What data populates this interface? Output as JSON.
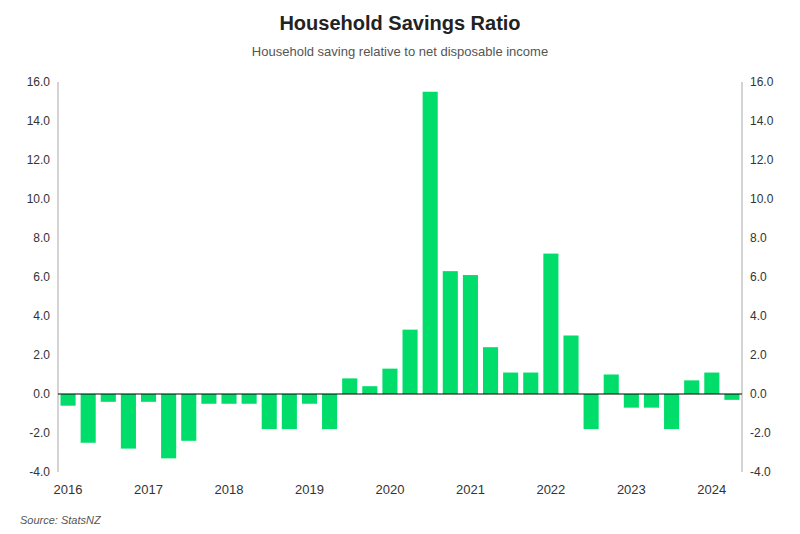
{
  "chart_data": {
    "type": "bar",
    "title": "Household Savings Ratio",
    "subtitle": "Household saving relative to net disposable income",
    "source": "Source: StatsNZ",
    "categories": [
      "2016",
      null,
      null,
      null,
      "2017",
      null,
      null,
      null,
      "2018",
      null,
      null,
      null,
      "2019",
      null,
      null,
      null,
      "2020",
      null,
      null,
      null,
      "2021",
      null,
      null,
      null,
      "2022",
      null,
      null,
      null,
      "2023",
      null,
      null,
      null,
      "2024",
      null
    ],
    "values": [
      -0.6,
      -2.5,
      -0.4,
      -2.8,
      -0.4,
      -3.3,
      -2.4,
      -0.5,
      -0.5,
      -0.5,
      -1.8,
      -1.8,
      -0.5,
      -1.8,
      0.8,
      0.4,
      1.3,
      3.3,
      15.5,
      6.3,
      6.1,
      2.4,
      1.1,
      1.1,
      7.2,
      3.0,
      -1.8,
      1.0,
      -0.7,
      -0.7,
      -1.8,
      0.7,
      1.1,
      -0.3
    ],
    "color": "#00DD6A",
    "ylim": [
      -4.0,
      16.0
    ],
    "yticks": [
      {
        "value": -4.0,
        "label": "-4.0"
      },
      {
        "value": -2.0,
        "label": "-2.0"
      },
      {
        "value": 0.0,
        "label": "0.0"
      },
      {
        "value": 2.0,
        "label": "2.0"
      },
      {
        "value": 4.0,
        "label": "4.0"
      },
      {
        "value": 6.0,
        "label": "6.0"
      },
      {
        "value": 8.0,
        "label": "8.0"
      },
      {
        "value": 10.0,
        "label": "10.0"
      },
      {
        "value": 12.0,
        "label": "12.0"
      },
      {
        "value": 14.0,
        "label": "14.0"
      },
      {
        "value": 16.0,
        "label": "16.0"
      }
    ],
    "y2lim": [
      -4.0,
      16.0
    ],
    "y2ticks": [
      {
        "value": -4.0,
        "label": "-4.0"
      },
      {
        "value": -2.0,
        "label": "-2.0"
      },
      {
        "value": 0.0,
        "label": "0.0"
      },
      {
        "value": 2.0,
        "label": "2.0"
      },
      {
        "value": 4.0,
        "label": "4.0"
      },
      {
        "value": 6.0,
        "label": "6.0"
      },
      {
        "value": 8.0,
        "label": "8.0"
      },
      {
        "value": 10.0,
        "label": "10.0"
      },
      {
        "value": 12.0,
        "label": "12.0"
      },
      {
        "value": 14.0,
        "label": "14.0"
      },
      {
        "value": 16.0,
        "label": "16.0"
      }
    ],
    "grid": false
  }
}
